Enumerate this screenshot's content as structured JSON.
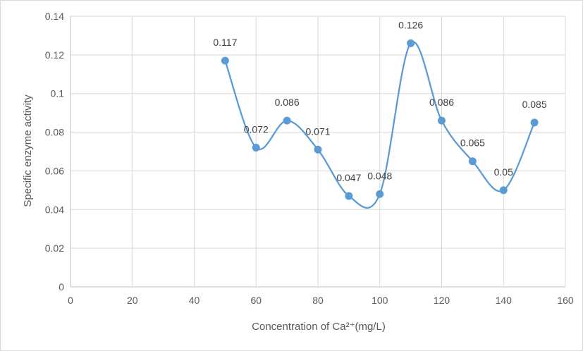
{
  "chart_data": {
    "type": "line",
    "title": "",
    "xlabel": "Concentration of Ca²⁺(mg/L)",
    "ylabel": "Specific enzyme activity",
    "xlim": [
      0,
      160
    ],
    "ylim": [
      0,
      0.14
    ],
    "x_ticks": [
      "0",
      "20",
      "40",
      "60",
      "80",
      "100",
      "120",
      "140",
      "160"
    ],
    "y_ticks": [
      "0",
      "0.02",
      "0.04",
      "0.06",
      "0.08",
      "0.1",
      "0.12",
      "0.14"
    ],
    "grid": true,
    "smooth": true,
    "color": "#5b9bd5",
    "series": [
      {
        "x": [
          50,
          60,
          70,
          80,
          90,
          100,
          110,
          120,
          130,
          140,
          150
        ],
        "values": [
          0.117,
          0.072,
          0.086,
          0.071,
          0.047,
          0.048,
          0.126,
          0.086,
          0.065,
          0.05,
          0.085
        ],
        "labels": [
          "0.117",
          "0.072",
          "0.086",
          "0.071",
          "0.047",
          "0.048",
          "0.126",
          "0.086",
          "0.065",
          "0.05",
          "0.085"
        ]
      }
    ]
  }
}
